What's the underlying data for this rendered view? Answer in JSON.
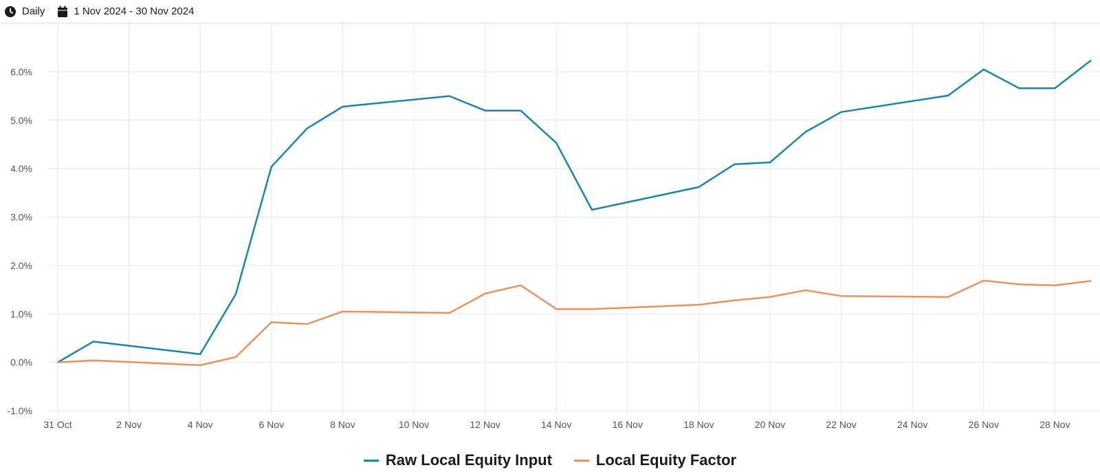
{
  "toolbar": {
    "frequency_label": "Daily",
    "frequency_icon": "clock-icon",
    "date_range_label": "1 Nov 2024 - 30 Nov 2024",
    "date_range_icon": "calendar-icon"
  },
  "colors": {
    "raw_series": "#1a84b0",
    "factor_series": "#e8925f",
    "grid": "#e8e8e8"
  },
  "chart_data": {
    "type": "line",
    "title": "",
    "xlabel": "",
    "ylabel": "",
    "x": [
      "31 Oct",
      "1 Nov",
      "4 Nov",
      "5 Nov",
      "6 Nov",
      "7 Nov",
      "8 Nov",
      "11 Nov",
      "12 Nov",
      "13 Nov",
      "14 Nov",
      "15 Nov",
      "18 Nov",
      "19 Nov",
      "20 Nov",
      "21 Nov",
      "22 Nov",
      "25 Nov",
      "26 Nov",
      "27 Nov",
      "28 Nov",
      "29 Nov"
    ],
    "x_day_index": [
      0,
      1,
      4,
      5,
      6,
      7,
      8,
      11,
      12,
      13,
      14,
      15,
      18,
      19,
      20,
      21,
      22,
      25,
      26,
      27,
      28,
      29
    ],
    "x_tick_labels": [
      "31 Oct",
      "2 Nov",
      "4 Nov",
      "6 Nov",
      "8 Nov",
      "10 Nov",
      "12 Nov",
      "14 Nov",
      "16 Nov",
      "18 Nov",
      "20 Nov",
      "22 Nov",
      "24 Nov",
      "26 Nov",
      "28 Nov"
    ],
    "x_tick_day_index": [
      0,
      2,
      4,
      6,
      8,
      10,
      12,
      14,
      16,
      18,
      20,
      22,
      24,
      26,
      28
    ],
    "y_ticks": [
      -1.0,
      0.0,
      1.0,
      2.0,
      3.0,
      4.0,
      5.0,
      6.0
    ],
    "y_tick_labels": [
      "-1.0%",
      "0.0%",
      "1.0%",
      "2.0%",
      "3.0%",
      "4.0%",
      "5.0%",
      "6.0%"
    ],
    "ylim": [
      -1.0,
      7.0
    ],
    "grid": true,
    "legend_position": "bottom-center",
    "series": [
      {
        "name": "Raw Local Equity Input",
        "values": [
          0.0,
          0.43,
          0.17,
          1.41,
          4.04,
          4.83,
          5.28,
          5.5,
          5.2,
          5.2,
          4.53,
          3.15,
          3.62,
          4.09,
          4.13,
          4.76,
          5.17,
          5.51,
          6.05,
          5.66,
          5.66,
          6.23
        ]
      },
      {
        "name": "Local Equity Factor",
        "values": [
          0.0,
          0.04,
          -0.06,
          0.11,
          0.83,
          0.79,
          1.05,
          1.02,
          1.42,
          1.59,
          1.1,
          1.1,
          1.19,
          1.28,
          1.35,
          1.49,
          1.37,
          1.35,
          1.69,
          1.61,
          1.59,
          1.68
        ]
      }
    ]
  }
}
